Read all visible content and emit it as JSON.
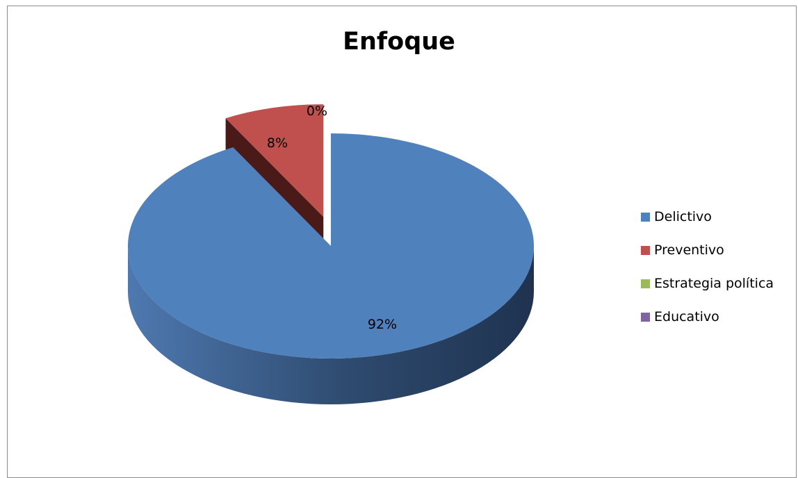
{
  "chart_data": {
    "type": "pie",
    "title": "Enfoque",
    "categories": [
      "Delictivo",
      "Preventivo",
      "Estrategia política",
      "Educativo"
    ],
    "values": [
      92,
      8,
      0,
      0
    ],
    "value_labels": [
      "92%",
      "8%",
      "0%",
      "0%"
    ],
    "colors": [
      "#4f81bd",
      "#c0504d",
      "#9bbb59",
      "#8064a2"
    ],
    "legend_position": "right",
    "style": "3d-exploded"
  }
}
